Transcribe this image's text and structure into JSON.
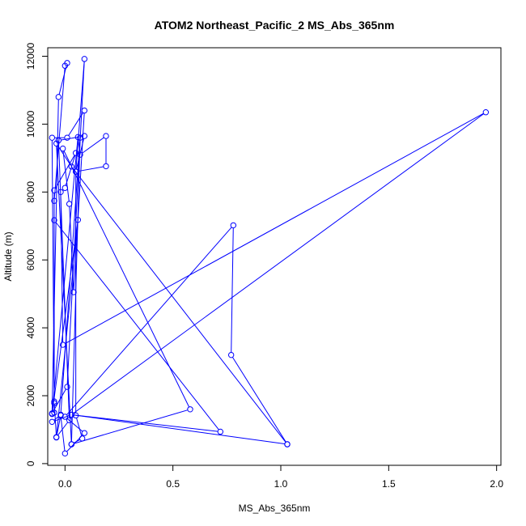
{
  "chart_data": {
    "type": "line",
    "title": "ATOM2 Northeast_Pacific_2 MS_Abs_365nm",
    "xlabel": "MS_Abs_365nm",
    "ylabel": "Altitude (m)",
    "xlim": [
      -0.08,
      2.02
    ],
    "ylim": [
      -50,
      12250
    ],
    "x_ticks": [
      {
        "value": 0.0,
        "label": "0.0"
      },
      {
        "value": 0.5,
        "label": "0.5"
      },
      {
        "value": 1.0,
        "label": "1.0"
      },
      {
        "value": 1.5,
        "label": "1.5"
      },
      {
        "value": 2.0,
        "label": "2.0"
      }
    ],
    "y_ticks": [
      {
        "value": 0,
        "label": "0"
      },
      {
        "value": 2000,
        "label": "2000"
      },
      {
        "value": 4000,
        "label": "4000"
      },
      {
        "value": 6000,
        "label": "6000"
      },
      {
        "value": 8000,
        "label": "8000"
      },
      {
        "value": 10000,
        "label": "10000"
      },
      {
        "value": 12000,
        "label": "12000"
      }
    ],
    "grid": false,
    "legend": "none",
    "series_color": "#0000ff",
    "series": [
      {
        "x": [
          -0.05,
          -0.05,
          -0.06,
          0.01,
          0.09,
          0.04,
          0.02,
          -0.01,
          0.58,
          0.03,
          0.08,
          0.05,
          0.05,
          0.09,
          -0.03,
          0.02,
          -0.04,
          -0.05,
          -0.05,
          0.05,
          0.0,
          -0.02,
          -0.01,
          1.95,
          0.03,
          -0.06,
          -0.02,
          0.07,
          0.03,
          -0.04,
          0.03,
          1.03,
          0.03,
          0.72,
          -0.05,
          -0.05,
          0.0,
          0.01,
          -0.03,
          -0.06,
          0.01,
          0.09,
          0.05,
          0.19,
          0.19,
          0.07,
          0.06,
          -0.06,
          0.06,
          -0.04,
          -0.02,
          0.0,
          0.09,
          0.0,
          0.78,
          0.77,
          1.03
        ],
        "y": [
          1500,
          1780,
          9600,
          9600,
          10400,
          5050,
          7650,
          9280,
          1600,
          570,
          740,
          1420,
          8600,
          9650,
          9520,
          1280,
          780,
          1830,
          8050,
          9150,
          8120,
          8000,
          3500,
          10350,
          1440,
          1230,
          1440,
          9600,
          570,
          9430,
          8750,
          570,
          1440,
          940,
          7170,
          7740,
          11720,
          11800,
          10800,
          1480,
          2260,
          11920,
          8600,
          8760,
          9650,
          9100,
          9620,
          1460,
          7180,
          770,
          1420,
          300,
          900,
          1380,
          7020,
          3200,
          570
        ]
      }
    ]
  }
}
